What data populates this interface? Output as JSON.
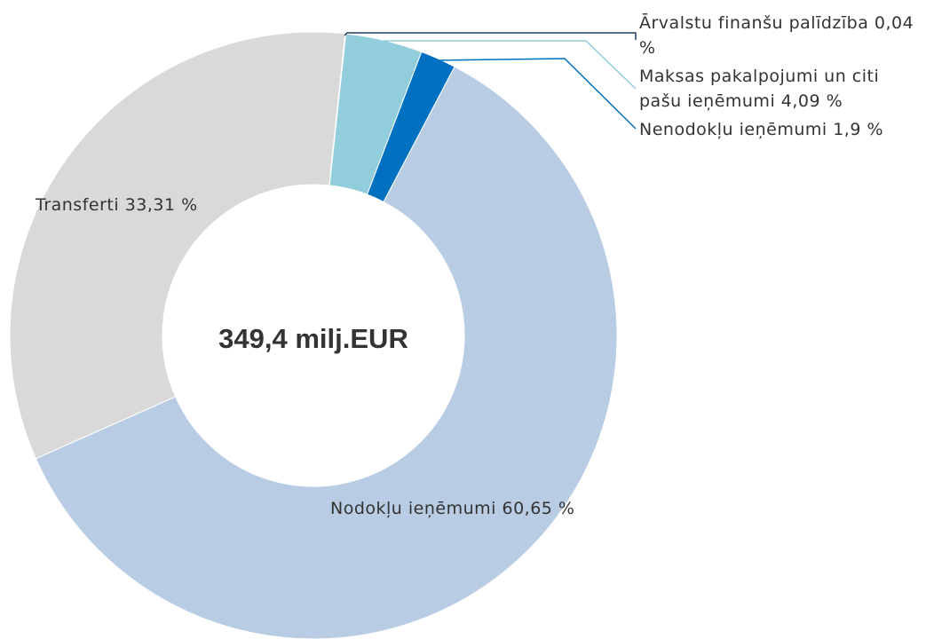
{
  "chart_data": {
    "type": "donut",
    "center_label": "349,4 milj.EUR",
    "categories": [
      "Ārvalstu finanšu palīdzība",
      "Maksas pakalpojumi un citi pašu ieņēmumi",
      "Nenodokļu ieņēmumi",
      "Nodokļu ieņēmumi",
      "Transferti"
    ],
    "values": [
      0.04,
      4.09,
      1.9,
      60.65,
      33.31
    ],
    "value_labels": [
      "0,04 %",
      "4,09 %",
      "1,9 %",
      "60,65 %",
      "33,31 %"
    ],
    "colors": [
      "#1f3d5c",
      "#92cddc",
      "#0070c0",
      "#b8cce4",
      "#d9d9d9"
    ]
  }
}
